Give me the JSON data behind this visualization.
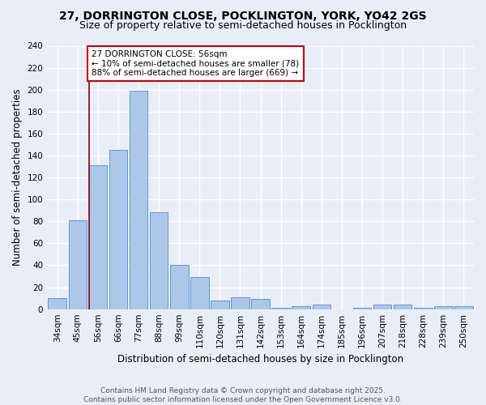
{
  "title_line1": "27, DORRINGTON CLOSE, POCKLINGTON, YORK, YO42 2GS",
  "title_line2": "Size of property relative to semi-detached houses in Pocklington",
  "xlabel": "Distribution of semi-detached houses by size in Pocklington",
  "ylabel": "Number of semi-detached properties",
  "categories": [
    "34sqm",
    "45sqm",
    "56sqm",
    "66sqm",
    "77sqm",
    "88sqm",
    "99sqm",
    "110sqm",
    "120sqm",
    "131sqm",
    "142sqm",
    "153sqm",
    "164sqm",
    "174sqm",
    "185sqm",
    "196sqm",
    "207sqm",
    "218sqm",
    "228sqm",
    "239sqm",
    "250sqm"
  ],
  "values": [
    10,
    81,
    131,
    145,
    199,
    88,
    40,
    29,
    8,
    11,
    9,
    1,
    3,
    4,
    0,
    1,
    4,
    4,
    1,
    3,
    3
  ],
  "bar_color": "#aec6e8",
  "bar_edge_color": "#5b9bd5",
  "highlight_bar_index": 2,
  "highlight_line_color": "#8b0000",
  "annotation_text": "27 DORRINGTON CLOSE: 56sqm\n← 10% of semi-detached houses are smaller (78)\n88% of semi-detached houses are larger (669) →",
  "annotation_box_color": "#ffffff",
  "annotation_box_edge_color": "#cc0000",
  "ylim": [
    0,
    240
  ],
  "yticks": [
    0,
    20,
    40,
    60,
    80,
    100,
    120,
    140,
    160,
    180,
    200,
    220,
    240
  ],
  "footnote": "Contains HM Land Registry data © Crown copyright and database right 2025.\nContains public sector information licensed under the Open Government Licence v3.0.",
  "background_color": "#e8eef8",
  "grid_color": "#ffffff",
  "title_fontsize": 10,
  "subtitle_fontsize": 9,
  "axis_label_fontsize": 8.5,
  "tick_fontsize": 7.5,
  "annotation_fontsize": 7.5,
  "footnote_fontsize": 6.5
}
